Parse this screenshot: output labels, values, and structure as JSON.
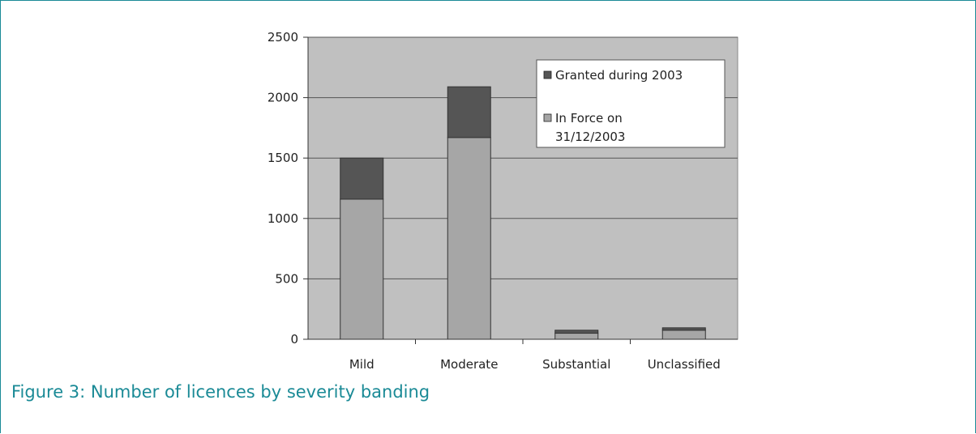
{
  "chart_data": {
    "type": "bar",
    "stacked": true,
    "categories": [
      "Mild",
      "Moderate",
      "Substantial",
      "Unclassified"
    ],
    "series": [
      {
        "name": "In Force on 31/12/2003",
        "values": [
          1160,
          1670,
          50,
          75
        ]
      },
      {
        "name": "Granted during 2003",
        "values": [
          340,
          420,
          25,
          20
        ]
      }
    ],
    "ylim": [
      0,
      2500
    ],
    "yticks": [
      0,
      500,
      1000,
      1500,
      2000,
      2500
    ],
    "grid": true,
    "legend_position": "top-right",
    "legend_entries": [
      "Granted during 2003",
      "In Force on",
      "31/12/2003"
    ],
    "colors": {
      "In Force on 31/12/2003": "#a6a6a6",
      "Granted during 2003": "#555555",
      "plot_background": "#c0c0c0"
    }
  },
  "caption": "Figure 3: Number of licences by severity banding"
}
